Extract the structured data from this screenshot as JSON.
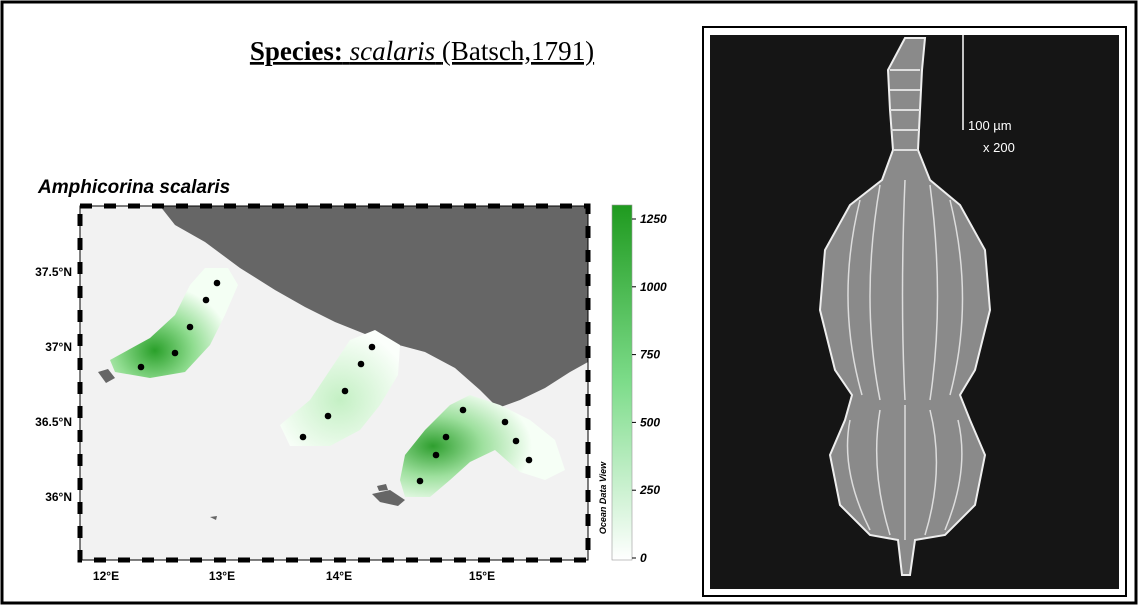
{
  "header": {
    "label": "Species:",
    "name": "scalaris",
    "authority": "(Batsch,1791)"
  },
  "map": {
    "title": "Amphicorina scalaris",
    "lon_ticks": [
      "12°E",
      "13°E",
      "14°E",
      "15°E"
    ],
    "lat_ticks": [
      "37.5°N",
      "37°N",
      "36.5°N",
      "36°N"
    ],
    "colorbar": {
      "ticks": [
        1250,
        1000,
        750,
        500,
        250,
        0
      ],
      "label": "Ocean Data View"
    }
  },
  "image": {
    "scale": "100 µm",
    "magnification": "x 200"
  }
}
